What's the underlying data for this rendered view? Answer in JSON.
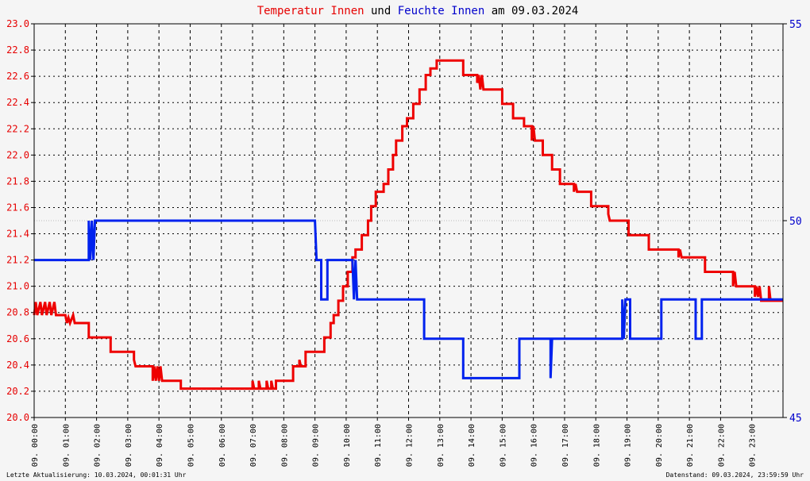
{
  "chart_data": {
    "type": "line",
    "title": {
      "part1": "Temperatur Innen",
      "part2": "und",
      "part3": "Feuchte Innen",
      "part4": "am 09.03.2024"
    },
    "xlim": [
      0,
      24
    ],
    "x_ticks": [
      {
        "x": 0,
        "label": "09. 00:00"
      },
      {
        "x": 1,
        "label": "09. 01:00"
      },
      {
        "x": 2,
        "label": "09. 02:00"
      },
      {
        "x": 3,
        "label": "09. 03:00"
      },
      {
        "x": 4,
        "label": "09. 04:00"
      },
      {
        "x": 5,
        "label": "09. 05:00"
      },
      {
        "x": 6,
        "label": "09. 06:00"
      },
      {
        "x": 7,
        "label": "09. 07:00"
      },
      {
        "x": 8,
        "label": "09. 08:00"
      },
      {
        "x": 9,
        "label": "09. 09:00"
      },
      {
        "x": 10,
        "label": "09. 10:00"
      },
      {
        "x": 11,
        "label": "09. 11:00"
      },
      {
        "x": 12,
        "label": "09. 12:00"
      },
      {
        "x": 13,
        "label": "09. 13:00"
      },
      {
        "x": 14,
        "label": "09. 14:00"
      },
      {
        "x": 15,
        "label": "09. 15:00"
      },
      {
        "x": 16,
        "label": "09. 16:00"
      },
      {
        "x": 17,
        "label": "09. 17:00"
      },
      {
        "x": 18,
        "label": "09. 18:00"
      },
      {
        "x": 19,
        "label": "09. 19:00"
      },
      {
        "x": 20,
        "label": "09. 20:00"
      },
      {
        "x": 21,
        "label": "09. 21:00"
      },
      {
        "x": 22,
        "label": "09. 22:00"
      },
      {
        "x": 23,
        "label": "09. 23:00"
      }
    ],
    "y_left": {
      "ylim": [
        20.0,
        23.0
      ],
      "ticks": [
        "20.0",
        "20.2",
        "20.4",
        "20.6",
        "20.8",
        "21.0",
        "21.2",
        "21.4",
        "21.6",
        "21.8",
        "22.0",
        "22.2",
        "22.4",
        "22.6",
        "22.8",
        "23.0"
      ],
      "color": "#e60000"
    },
    "y_right": {
      "ylim": [
        45,
        55
      ],
      "ticks": [
        "45",
        "50",
        "55"
      ],
      "color": "#0000cc"
    },
    "grid": true,
    "series": [
      {
        "name": "Temperatur Innen",
        "axis": "left",
        "color": "#ee0000",
        "points": [
          [
            0.0,
            20.78
          ],
          [
            0.05,
            20.88
          ],
          [
            0.1,
            20.78
          ],
          [
            0.2,
            20.88
          ],
          [
            0.25,
            20.78
          ],
          [
            0.35,
            20.88
          ],
          [
            0.4,
            20.78
          ],
          [
            0.5,
            20.88
          ],
          [
            0.55,
            20.78
          ],
          [
            0.65,
            20.88
          ],
          [
            0.7,
            20.78
          ],
          [
            1.0,
            20.78
          ],
          [
            1.05,
            20.72
          ],
          [
            1.1,
            20.76
          ],
          [
            1.15,
            20.72
          ],
          [
            1.25,
            20.78
          ],
          [
            1.3,
            20.72
          ],
          [
            1.75,
            20.72
          ],
          [
            1.75,
            20.61
          ],
          [
            2.45,
            20.61
          ],
          [
            2.45,
            20.5
          ],
          [
            3.2,
            20.5
          ],
          [
            3.2,
            20.44
          ],
          [
            3.25,
            20.39
          ],
          [
            3.8,
            20.39
          ],
          [
            3.8,
            20.28
          ],
          [
            3.85,
            20.39
          ],
          [
            3.9,
            20.28
          ],
          [
            3.95,
            20.39
          ],
          [
            4.0,
            20.28
          ],
          [
            4.05,
            20.39
          ],
          [
            4.1,
            20.28
          ],
          [
            4.7,
            20.28
          ],
          [
            4.7,
            20.22
          ],
          [
            7.0,
            20.22
          ],
          [
            7.0,
            20.28
          ],
          [
            7.05,
            20.22
          ],
          [
            7.2,
            20.22
          ],
          [
            7.2,
            20.28
          ],
          [
            7.25,
            20.22
          ],
          [
            7.45,
            20.22
          ],
          [
            7.45,
            20.28
          ],
          [
            7.5,
            20.22
          ],
          [
            7.6,
            20.22
          ],
          [
            7.6,
            20.28
          ],
          [
            7.65,
            20.22
          ],
          [
            7.75,
            20.22
          ],
          [
            7.75,
            20.28
          ],
          [
            8.3,
            20.28
          ],
          [
            8.3,
            20.39
          ],
          [
            8.5,
            20.39
          ],
          [
            8.5,
            20.44
          ],
          [
            8.55,
            20.39
          ],
          [
            8.7,
            20.39
          ],
          [
            8.7,
            20.5
          ],
          [
            9.3,
            20.5
          ],
          [
            9.3,
            20.61
          ],
          [
            9.5,
            20.61
          ],
          [
            9.5,
            20.72
          ],
          [
            9.6,
            20.72
          ],
          [
            9.6,
            20.78
          ],
          [
            9.75,
            20.78
          ],
          [
            9.75,
            20.89
          ],
          [
            9.9,
            20.89
          ],
          [
            9.9,
            21.0
          ],
          [
            10.05,
            21.0
          ],
          [
            10.05,
            21.11
          ],
          [
            10.2,
            21.11
          ],
          [
            10.2,
            21.22
          ],
          [
            10.3,
            21.22
          ],
          [
            10.3,
            21.28
          ],
          [
            10.5,
            21.28
          ],
          [
            10.5,
            21.39
          ],
          [
            10.7,
            21.39
          ],
          [
            10.7,
            21.5
          ],
          [
            10.8,
            21.5
          ],
          [
            10.8,
            21.61
          ],
          [
            10.95,
            21.61
          ],
          [
            10.95,
            21.72
          ],
          [
            11.2,
            21.72
          ],
          [
            11.2,
            21.78
          ],
          [
            11.35,
            21.78
          ],
          [
            11.35,
            21.89
          ],
          [
            11.5,
            21.89
          ],
          [
            11.5,
            22.0
          ],
          [
            11.6,
            22.0
          ],
          [
            11.6,
            22.11
          ],
          [
            11.8,
            22.11
          ],
          [
            11.8,
            22.22
          ],
          [
            11.95,
            22.22
          ],
          [
            11.95,
            22.28
          ],
          [
            12.15,
            22.28
          ],
          [
            12.15,
            22.39
          ],
          [
            12.35,
            22.39
          ],
          [
            12.35,
            22.5
          ],
          [
            12.55,
            22.5
          ],
          [
            12.55,
            22.61
          ],
          [
            12.7,
            22.61
          ],
          [
            12.7,
            22.66
          ],
          [
            12.9,
            22.66
          ],
          [
            12.9,
            22.72
          ],
          [
            13.75,
            22.72
          ],
          [
            13.75,
            22.61
          ],
          [
            14.2,
            22.61
          ],
          [
            14.2,
            22.55
          ],
          [
            14.25,
            22.61
          ],
          [
            14.3,
            22.5
          ],
          [
            14.35,
            22.61
          ],
          [
            14.4,
            22.5
          ],
          [
            15.0,
            22.5
          ],
          [
            15.0,
            22.39
          ],
          [
            15.35,
            22.39
          ],
          [
            15.35,
            22.28
          ],
          [
            15.7,
            22.28
          ],
          [
            15.7,
            22.22
          ],
          [
            15.95,
            22.22
          ],
          [
            15.95,
            22.11
          ],
          [
            16.0,
            22.22
          ],
          [
            16.05,
            22.11
          ],
          [
            16.3,
            22.11
          ],
          [
            16.3,
            22.0
          ],
          [
            16.6,
            22.0
          ],
          [
            16.6,
            21.89
          ],
          [
            16.85,
            21.89
          ],
          [
            16.85,
            21.78
          ],
          [
            17.3,
            21.78
          ],
          [
            17.3,
            21.72
          ],
          [
            17.35,
            21.78
          ],
          [
            17.4,
            21.72
          ],
          [
            17.85,
            21.72
          ],
          [
            17.85,
            21.61
          ],
          [
            18.4,
            21.61
          ],
          [
            18.4,
            21.55
          ],
          [
            18.45,
            21.5
          ],
          [
            19.05,
            21.5
          ],
          [
            19.05,
            21.39
          ],
          [
            19.7,
            21.39
          ],
          [
            19.7,
            21.28
          ],
          [
            20.65,
            21.28
          ],
          [
            20.65,
            21.22
          ],
          [
            20.7,
            21.28
          ],
          [
            20.75,
            21.22
          ],
          [
            21.5,
            21.22
          ],
          [
            21.5,
            21.11
          ],
          [
            22.4,
            21.11
          ],
          [
            22.4,
            21.0
          ],
          [
            22.45,
            21.11
          ],
          [
            22.5,
            21.0
          ],
          [
            23.1,
            21.0
          ],
          [
            23.1,
            20.92
          ],
          [
            23.15,
            21.0
          ],
          [
            23.2,
            20.92
          ],
          [
            23.25,
            21.0
          ],
          [
            23.3,
            20.89
          ],
          [
            23.55,
            20.89
          ],
          [
            23.55,
            21.0
          ],
          [
            23.6,
            20.89
          ],
          [
            24.0,
            20.89
          ]
        ]
      },
      {
        "name": "Feuchte Innen",
        "axis": "right",
        "color": "#0022ee",
        "points": [
          [
            0.0,
            49.0
          ],
          [
            1.75,
            49.0
          ],
          [
            1.75,
            50.0
          ],
          [
            1.8,
            49.0
          ],
          [
            1.85,
            50.0
          ],
          [
            1.9,
            49.0
          ],
          [
            1.95,
            50.0
          ],
          [
            9.0,
            50.0
          ],
          [
            9.05,
            49.0
          ],
          [
            9.2,
            49.0
          ],
          [
            9.2,
            48.0
          ],
          [
            9.4,
            48.0
          ],
          [
            9.4,
            49.0
          ],
          [
            10.2,
            49.0
          ],
          [
            10.25,
            48.0
          ],
          [
            10.3,
            49.0
          ],
          [
            10.35,
            48.0
          ],
          [
            12.5,
            48.0
          ],
          [
            12.5,
            47.0
          ],
          [
            13.75,
            47.0
          ],
          [
            13.75,
            46.0
          ],
          [
            15.55,
            46.0
          ],
          [
            15.55,
            47.0
          ],
          [
            16.55,
            47.0
          ],
          [
            16.55,
            46.0
          ],
          [
            16.6,
            47.0
          ],
          [
            18.85,
            47.0
          ],
          [
            18.85,
            48.0
          ],
          [
            18.9,
            47.0
          ],
          [
            18.95,
            48.0
          ],
          [
            19.1,
            48.0
          ],
          [
            19.1,
            47.0
          ],
          [
            20.1,
            47.0
          ],
          [
            20.1,
            48.0
          ],
          [
            21.2,
            48.0
          ],
          [
            21.2,
            47.0
          ],
          [
            21.4,
            47.0
          ],
          [
            21.4,
            48.0
          ],
          [
            24.0,
            48.0
          ]
        ]
      }
    ]
  },
  "footer": {
    "left": "Letzte Aktualisierung: 10.03.2024, 00:01:31 Uhr",
    "right": "Datenstand: 09.03.2024, 23:59:59 Uhr"
  },
  "colors": {
    "background": "#f5f5f5",
    "temp": "#ee0000",
    "hum": "#0022ee",
    "title_red": "#e60000",
    "title_blue": "#0000cc"
  }
}
